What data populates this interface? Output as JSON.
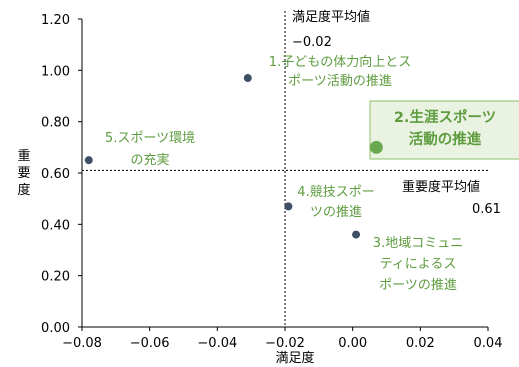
{
  "colors": {
    "point": "#3f4f68",
    "highlight": "#6aa84f",
    "label": "#5e9c3f",
    "highlight_box_fill": "#eaf3e2",
    "highlight_box_border": "#8cc06a"
  },
  "chart_data": {
    "type": "scatter",
    "xlabel": "満足度",
    "ylabel": "重要度",
    "xlim": [
      -0.08,
      0.04
    ],
    "ylim": [
      0,
      1.2
    ],
    "x_ticks": [
      "−0.08",
      "−0.06",
      "−0.04",
      "−0.02",
      "0.00",
      "0.02",
      "0.04"
    ],
    "y_ticks": [
      "0.00",
      "0.20",
      "0.40",
      "0.60",
      "0.80",
      "1.00",
      "1.20"
    ],
    "reference_lines": {
      "satisfaction_avg": {
        "label": "満足度平均値",
        "value_text": "−0.02",
        "value": -0.02
      },
      "importance_avg": {
        "label": "重要度平均値",
        "value_text": "0.61",
        "value": 0.61
      }
    },
    "points": [
      {
        "lines": [
          "1.子どもの体力向上とス",
          "ポーツ活動の推進"
        ],
        "x": -0.031,
        "y": 0.97,
        "highlight": false
      },
      {
        "lines": [
          "2.生涯スポーツ",
          "活動の推進"
        ],
        "x": 0.007,
        "y": 0.7,
        "highlight": true
      },
      {
        "lines": [
          "3.地域コミュニ",
          "ティによるス",
          "ポーツの推進"
        ],
        "x": 0.001,
        "y": 0.36,
        "highlight": false
      },
      {
        "lines": [
          "4.競技スポー",
          "ツの推進"
        ],
        "x": -0.019,
        "y": 0.47,
        "highlight": false
      },
      {
        "lines": [
          "5.スポーツ環境",
          "の充実"
        ],
        "x": -0.078,
        "y": 0.65,
        "highlight": false
      }
    ]
  }
}
